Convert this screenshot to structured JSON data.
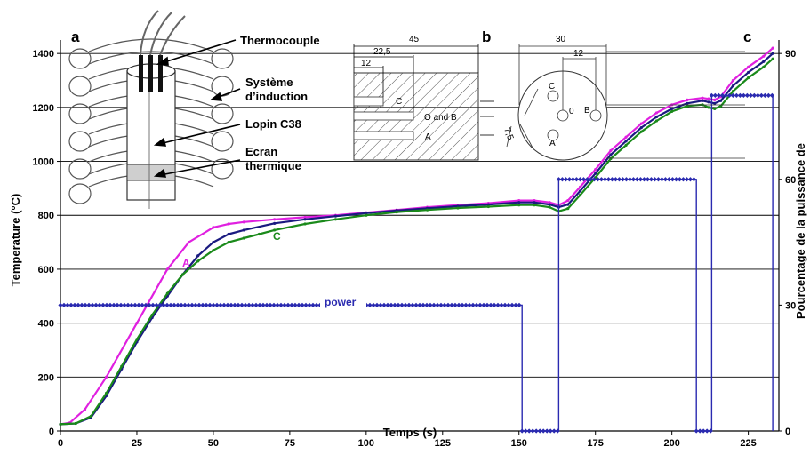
{
  "chart_data": {
    "type": "line",
    "xlabel": "Temps (s)",
    "ylabel": "Temperature (°C)",
    "y2label": "Pourcentage de la puissance de",
    "xlim": [
      0,
      235
    ],
    "ylim": [
      0,
      1450
    ],
    "y2lim": [
      0,
      90
    ],
    "x_ticks": [
      "0",
      "25",
      "50",
      "75",
      "100",
      "125",
      "150",
      "175",
      "200",
      "225"
    ],
    "y_ticks": [
      "0",
      "200",
      "400",
      "600",
      "800",
      "1000",
      "1200",
      "1400"
    ],
    "y2_ticks": [
      "0",
      "30",
      "60",
      "90"
    ],
    "grid": true,
    "series": [
      {
        "name": "A",
        "color": "#e020e0",
        "x": [
          0,
          3,
          8,
          15,
          25,
          35,
          42,
          50,
          55,
          60,
          70,
          80,
          90,
          100,
          110,
          120,
          130,
          140,
          150,
          155,
          160,
          163,
          166,
          170,
          175,
          180,
          185,
          190,
          195,
          200,
          205,
          210,
          212,
          214,
          216,
          220,
          225,
          230,
          233
        ],
        "values": [
          25,
          30,
          80,
          200,
          400,
          600,
          700,
          755,
          768,
          775,
          785,
          793,
          800,
          810,
          820,
          830,
          838,
          845,
          855,
          855,
          848,
          838,
          855,
          905,
          970,
          1040,
          1090,
          1140,
          1180,
          1210,
          1228,
          1235,
          1232,
          1228,
          1240,
          1300,
          1350,
          1390,
          1420
        ]
      },
      {
        "name": "O",
        "color": "#1a1a80",
        "x": [
          0,
          5,
          10,
          15,
          20,
          25,
          30,
          35,
          40,
          45,
          50,
          55,
          60,
          70,
          80,
          90,
          100,
          110,
          120,
          130,
          140,
          150,
          155,
          160,
          163,
          166,
          170,
          175,
          180,
          185,
          190,
          195,
          200,
          205,
          210,
          212,
          214,
          216,
          220,
          225,
          230,
          233
        ],
        "values": [
          25,
          28,
          50,
          130,
          230,
          330,
          420,
          500,
          580,
          650,
          700,
          730,
          745,
          770,
          785,
          797,
          808,
          818,
          826,
          834,
          840,
          848,
          848,
          840,
          830,
          840,
          890,
          955,
          1025,
          1075,
          1125,
          1165,
          1195,
          1215,
          1225,
          1220,
          1215,
          1225,
          1280,
          1330,
          1370,
          1400
        ]
      },
      {
        "name": "C",
        "color": "#1a8a1a",
        "x": [
          0,
          5,
          10,
          15,
          20,
          25,
          30,
          35,
          40,
          45,
          50,
          55,
          60,
          65,
          70,
          80,
          90,
          100,
          110,
          120,
          130,
          140,
          150,
          155,
          160,
          163,
          166,
          170,
          175,
          180,
          185,
          190,
          195,
          200,
          205,
          210,
          212,
          214,
          216,
          220,
          225,
          230,
          233
        ],
        "values": [
          25,
          28,
          55,
          140,
          240,
          340,
          430,
          510,
          580,
          630,
          670,
          700,
          715,
          730,
          745,
          768,
          785,
          800,
          812,
          820,
          827,
          832,
          838,
          838,
          830,
          815,
          825,
          875,
          940,
          1010,
          1060,
          1110,
          1150,
          1185,
          1205,
          1210,
          1200,
          1195,
          1205,
          1260,
          1310,
          1350,
          1380
        ]
      }
    ],
    "power_series": {
      "name": "power",
      "color": "#2a2ab0",
      "axis": "right",
      "x": [
        0,
        151,
        151,
        163,
        163,
        208,
        208,
        213,
        213,
        233,
        233
      ],
      "values": [
        30,
        30,
        0,
        0,
        60,
        60,
        0,
        0,
        80,
        80,
        0
      ]
    },
    "annotations": [
      "A",
      "C",
      "power"
    ]
  },
  "insets": {
    "a": {
      "panel_label": "a",
      "labels": [
        "Thermocouple",
        "Système",
        "d’induction",
        "Lopin C38",
        "Ecran",
        "thermique"
      ]
    },
    "b": {
      "panel_label": "b",
      "dimensions": [
        "45",
        "22,5",
        "12"
      ],
      "points": [
        "C",
        "O and B",
        "A"
      ]
    },
    "c": {
      "panel_label": "c",
      "dimensions": [
        "30",
        "12",
        "7,5"
      ],
      "points": [
        "C",
        "0",
        "B",
        "A"
      ]
    }
  },
  "colors": {
    "grid": "#000000",
    "axis": "#000000",
    "background": "#ffffff"
  }
}
